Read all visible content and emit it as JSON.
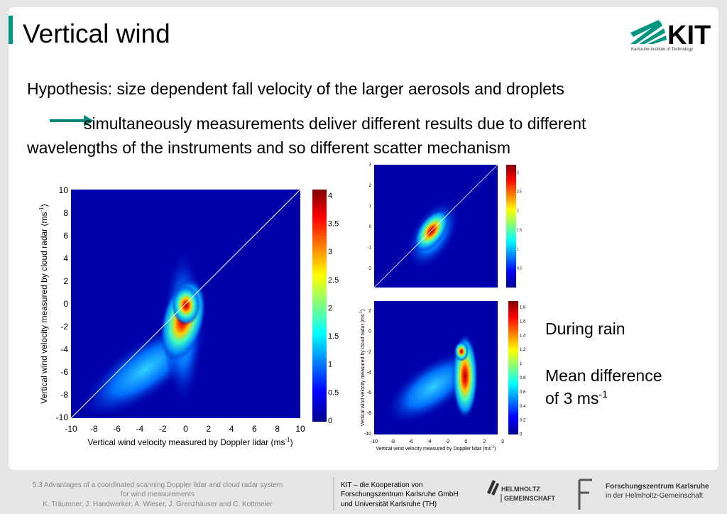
{
  "header": {
    "title": "Vertical wind",
    "logo": "KIT",
    "logo_subtitle": "Karlsruhe Institute of Technology"
  },
  "body": {
    "hypothesis": "Hypothesis: size dependent fall velocity of the larger aerosols and droplets",
    "consequence_line1": "simultaneously measurements deliver different results due to different",
    "consequence_line2": "wavelengths of the instruments and so different scatter mechanism"
  },
  "main_plot": {
    "x_label": {
      "text": "Vertical wind velocity measured by Doppler lidar (ms",
      "sup": "-1",
      "end": ")"
    },
    "y_label": {
      "text": "Vertical wind velocity measured by cloud radar (ms",
      "sup": "-1",
      "end": ")"
    },
    "xticks": [
      -10,
      -8,
      -6,
      -4,
      -2,
      0,
      2,
      4,
      6,
      8,
      10
    ],
    "yticks": [
      10,
      8,
      6,
      4,
      2,
      0,
      -2,
      -4,
      -6,
      -8,
      -10
    ],
    "colorbar_ticks": [
      4,
      3.5,
      3,
      2.5,
      2,
      1.5,
      1,
      0.5,
      0
    ]
  },
  "top_plot": {
    "yticks": [
      3,
      2,
      1,
      0,
      -1,
      -2
    ],
    "colorbar_ticks": [
      3,
      2.5,
      2,
      1.5,
      1,
      0.5
    ]
  },
  "bottom_plot": {
    "x_label": {
      "text": "Vertical wind velocity measured by Doppler lidar (ms",
      "sup": "-1",
      "end": ")"
    },
    "y_label": {
      "text": "Vertical wind velocity measured by cloud radar (ms",
      "sup": "-1",
      "end": ")"
    },
    "xticks": [
      -10,
      -8,
      -6,
      -4,
      -2,
      0,
      2,
      3
    ],
    "yticks": [
      2,
      0,
      -2,
      -4,
      -6,
      -8,
      -10
    ],
    "colorbar_ticks": [
      1.8,
      1.6,
      1.4,
      1.2,
      1,
      0.8,
      0.6,
      0.4,
      0.2,
      0
    ]
  },
  "side_note": {
    "line1": "During rain",
    "line2": "Mean difference",
    "line3": "of 3 ms",
    "sup": "-1"
  },
  "footer": {
    "left": [
      "5.3 Advantages of a coordinated scanning Doppler lidar and cloud radar system",
      "for wind measurements",
      "K. Träumner, J. Handwerker, A. Wieser, J. Grenzhäuser and C. Kottmeier"
    ],
    "center": [
      "KIT – die Kooperation von",
      "Forschungszentrum Karlsruhe GmbH",
      "und Universität Karlsruhe (TH)"
    ],
    "helmholtz": [
      "HELMHOLTZ",
      "GEMEINSCHAFT"
    ],
    "fzk": [
      "Forschungszentrum Karlsruhe",
      "in der Helmholtz-Gemeinschaft"
    ]
  }
}
